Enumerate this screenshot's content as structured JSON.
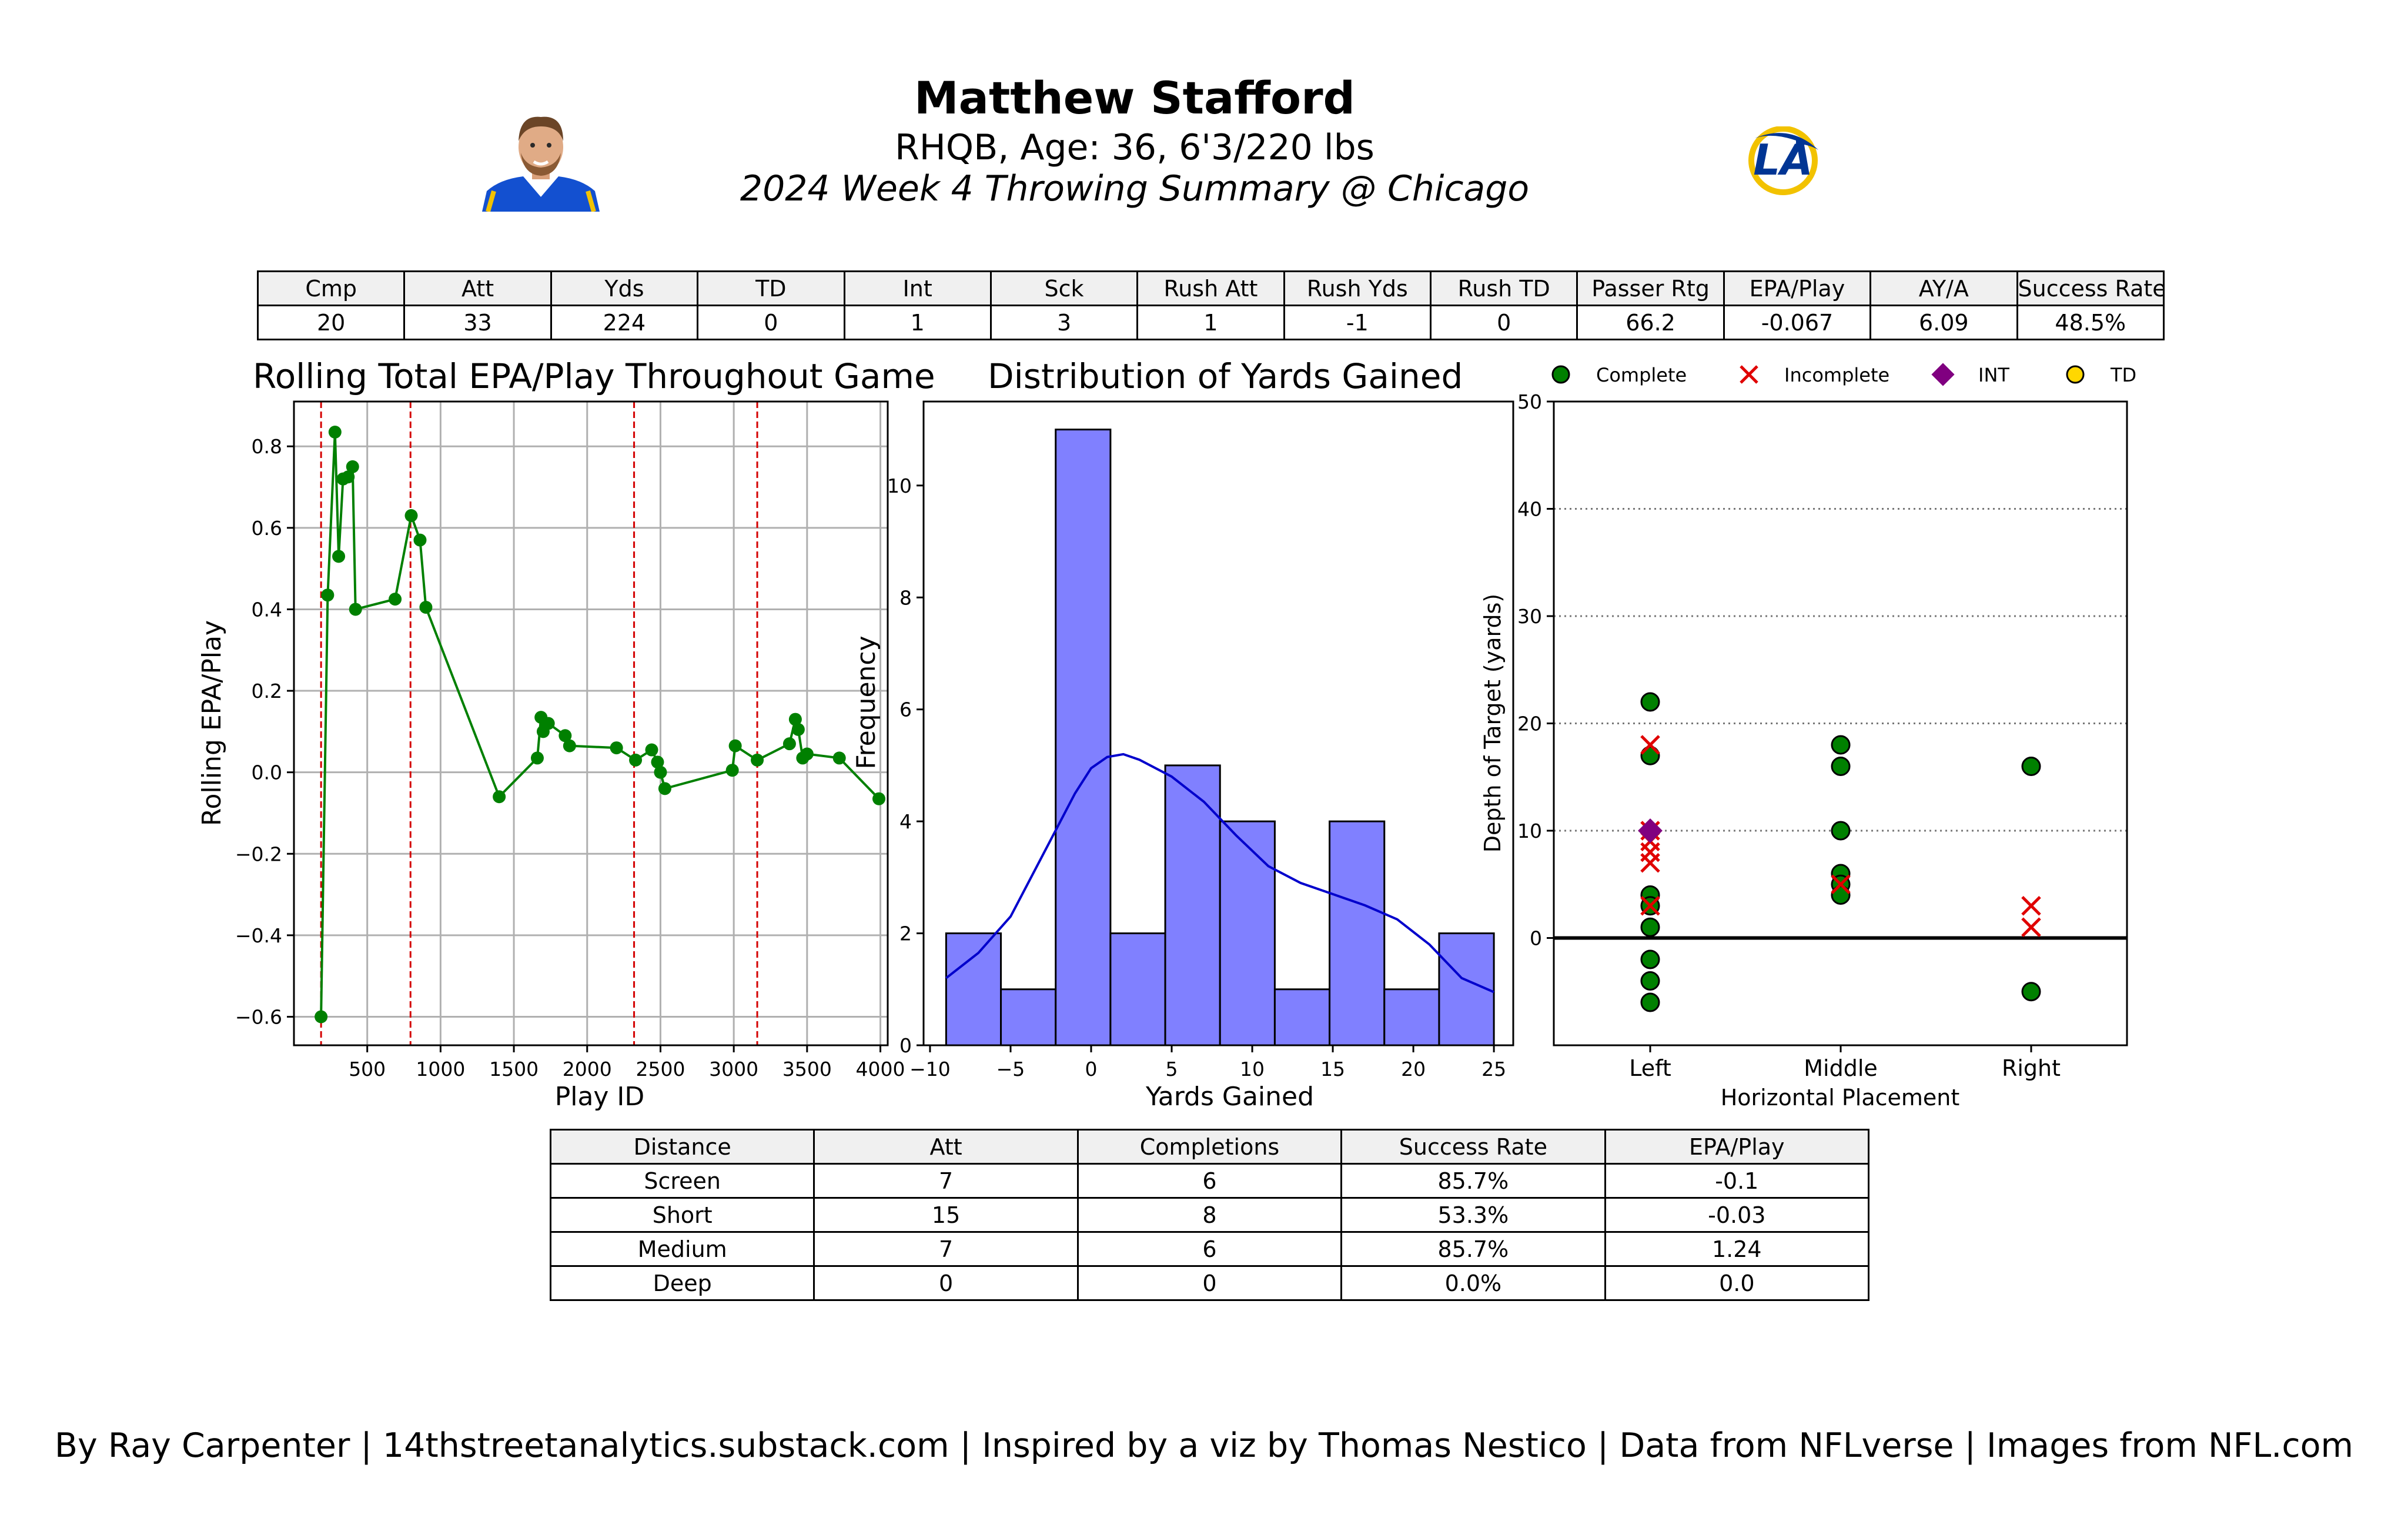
{
  "header": {
    "name": "Matthew Stafford",
    "subtitle": "RHQB, Age: 36, 6'3/220 lbs",
    "summary": "2024 Week 4 Throwing Summary @ Chicago",
    "team_logo_text": "LA"
  },
  "stats_table": {
    "headers": [
      "Cmp",
      "Att",
      "Yds",
      "TD",
      "Int",
      "Sck",
      "Rush Att",
      "Rush Yds",
      "Rush TD",
      "Passer Rtg",
      "EPA/Play",
      "AY/A",
      "Success Rate"
    ],
    "values": [
      "20",
      "33",
      "224",
      "0",
      "1",
      "3",
      "1",
      "-1",
      "0",
      "66.2",
      "-0.067",
      "6.09",
      "48.5%"
    ]
  },
  "depth_table": {
    "headers": [
      "Distance",
      "Att",
      "Completions",
      "Success Rate",
      "EPA/Play"
    ],
    "rows": [
      [
        "Screen",
        "7",
        "6",
        "85.7%",
        "-0.1"
      ],
      [
        "Short",
        "15",
        "8",
        "53.3%",
        "-0.03"
      ],
      [
        "Medium",
        "7",
        "6",
        "85.7%",
        "1.24"
      ],
      [
        "Deep",
        "0",
        "0",
        "0.0%",
        "0.0"
      ]
    ]
  },
  "credit": "By Ray Carpenter | 14thstreetanalytics.substack.com | Inspired by a viz by Thomas Nestico | Data from NFLverse | Images from NFL.com",
  "colors": {
    "line": "#008000",
    "quarter_line": "#d40000",
    "hist_fill": "#8080ff",
    "kde": "#0000cc",
    "complete": "#008000",
    "incomplete": "#e00000",
    "int": "#800080",
    "td": "#ffd700",
    "header_bg": "#f0f0f0"
  },
  "chart_data": [
    {
      "type": "line",
      "title": "Rolling Total EPA/Play Throughout Game",
      "xlabel": "Play ID",
      "ylabel": "Rolling EPA/Play",
      "xlim": [
        0,
        4050
      ],
      "ylim": [
        -0.67,
        0.91
      ],
      "xticks": [
        500,
        1000,
        1500,
        2000,
        2500,
        3000,
        3500,
        4000
      ],
      "yticks": [
        -0.6,
        -0.4,
        -0.2,
        0.0,
        0.2,
        0.4,
        0.6,
        0.8
      ],
      "grid": true,
      "quarter_lines": [
        185,
        795,
        2320,
        3160
      ],
      "x": [
        185,
        230,
        280,
        305,
        335,
        370,
        400,
        420,
        690,
        800,
        860,
        900,
        1400,
        1660,
        1685,
        1700,
        1735,
        1850,
        1880,
        2200,
        2330,
        2440,
        2480,
        2500,
        2530,
        2990,
        3010,
        3160,
        3380,
        3420,
        3440,
        3470,
        3500,
        3720,
        3990
      ],
      "y": [
        -0.6,
        0.435,
        0.835,
        0.53,
        0.72,
        0.725,
        0.75,
        0.4,
        0.425,
        0.63,
        0.57,
        0.405,
        -0.06,
        0.035,
        0.135,
        0.1,
        0.12,
        0.09,
        0.065,
        0.06,
        0.03,
        0.055,
        0.025,
        0.0,
        -0.04,
        0.005,
        0.065,
        0.03,
        0.07,
        0.13,
        0.105,
        0.035,
        0.045,
        0.035,
        -0.065
      ]
    },
    {
      "type": "bar",
      "title": "Distribution of Yards Gained",
      "xlabel": "Yards Gained",
      "ylabel": "Frequency",
      "xlim": [
        -10.4,
        26.2
      ],
      "ylim": [
        0,
        11.5
      ],
      "xticks": [
        -10,
        -5,
        0,
        5,
        10,
        15,
        20,
        25
      ],
      "yticks": [
        0,
        2,
        4,
        6,
        8,
        10
      ],
      "bin_edges": [
        -9,
        -5.6,
        -2.2,
        1.2,
        4.6,
        8.0,
        11.4,
        14.8,
        18.2,
        21.6,
        25
      ],
      "values": [
        2,
        1,
        11,
        2,
        5,
        4,
        1,
        4,
        1,
        2
      ],
      "kde_x": [
        -9,
        -7,
        -5,
        -3,
        -1,
        0,
        1,
        2,
        3,
        5,
        7,
        9,
        11,
        13,
        15,
        17,
        19,
        21,
        23,
        25
      ],
      "kde_y": [
        1.2,
        1.65,
        2.3,
        3.4,
        4.5,
        4.95,
        5.15,
        5.2,
        5.1,
        4.8,
        4.35,
        3.75,
        3.2,
        2.9,
        2.7,
        2.5,
        2.25,
        1.8,
        1.2,
        0.95
      ]
    },
    {
      "type": "scatter",
      "xlabel": "Horizontal Placement",
      "ylabel": "Depth of Target (yards)",
      "categories": [
        "Left",
        "Middle",
        "Right"
      ],
      "ylim": [
        -10,
        50
      ],
      "yticks": [
        0,
        10,
        20,
        30,
        40,
        50
      ],
      "legend": [
        "Complete",
        "Incomplete",
        "INT",
        "TD"
      ],
      "legend_position": "top",
      "series": [
        {
          "name": "Complete",
          "points": [
            [
              0,
              22
            ],
            [
              0,
              17
            ],
            [
              0,
              4
            ],
            [
              0,
              3
            ],
            [
              0,
              1
            ],
            [
              0,
              -2
            ],
            [
              0,
              -4
            ],
            [
              0,
              -6
            ],
            [
              1,
              18
            ],
            [
              1,
              16
            ],
            [
              1,
              10
            ],
            [
              1,
              6
            ],
            [
              1,
              5
            ],
            [
              1,
              4
            ],
            [
              2,
              16
            ],
            [
              2,
              -5
            ]
          ]
        },
        {
          "name": "Incomplete",
          "points": [
            [
              0,
              18
            ],
            [
              0,
              10
            ],
            [
              0,
              9
            ],
            [
              0,
              8
            ],
            [
              0,
              7
            ],
            [
              0,
              3
            ],
            [
              1,
              5
            ],
            [
              2,
              3
            ],
            [
              2,
              1
            ]
          ]
        },
        {
          "name": "INT",
          "points": [
            [
              0,
              10
            ]
          ]
        },
        {
          "name": "TD",
          "points": []
        }
      ]
    }
  ]
}
